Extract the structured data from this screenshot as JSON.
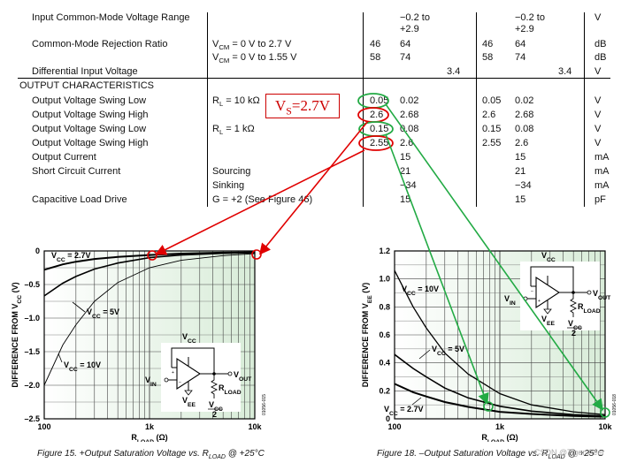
{
  "table": {
    "rows": [
      {
        "param": "Input Common-Mode Voltage Range",
        "cond": "",
        "min1": "",
        "typ1": "−0.2 to\n+2.9",
        "max1": "",
        "min2": "",
        "typ2": "−0.2 to\n+2.9",
        "max2": "",
        "unit": "V",
        "indent": true
      },
      {
        "param": "Common-Mode Rejection Ratio",
        "cond": "V_CM = 0 V to 2.7 V",
        "min1": "46",
        "typ1": "64",
        "max1": "",
        "min2": "46",
        "typ2": "64",
        "max2": "",
        "unit": "dB",
        "indent": true
      },
      {
        "param": "",
        "cond": "V_CM = 0 V to 1.55 V",
        "min1": "58",
        "typ1": "74",
        "max1": "",
        "min2": "58",
        "typ2": "74",
        "max2": "",
        "unit": "dB",
        "indent": true
      },
      {
        "param": "Differential Input Voltage",
        "cond": "",
        "min1": "",
        "typ1": "",
        "max1": "3.4",
        "min2": "",
        "typ2": "",
        "max2": "3.4",
        "unit": "V",
        "indent": true
      },
      {
        "param": "OUTPUT CHARACTERISTICS",
        "cond": "",
        "min1": "",
        "typ1": "",
        "max1": "",
        "min2": "",
        "typ2": "",
        "max2": "",
        "unit": "",
        "indent": false
      },
      {
        "param": "Output Voltage Swing Low",
        "cond": "R_L = 10 kΩ",
        "min1": "0.05",
        "typ1": "0.02",
        "max1": "",
        "min2": "0.05",
        "typ2": "0.02",
        "max2": "",
        "unit": "V",
        "indent": true
      },
      {
        "param": "Output Voltage Swing High",
        "cond": "",
        "min1": "2.6",
        "typ1": "2.68",
        "max1": "",
        "min2": "2.6",
        "typ2": "2.68",
        "max2": "",
        "unit": "V",
        "indent": true
      },
      {
        "param": "Output Voltage Swing Low",
        "cond": "R_L = 1 kΩ",
        "min1": "0.15",
        "typ1": "0.08",
        "max1": "",
        "min2": "0.15",
        "typ2": "0.08",
        "max2": "",
        "unit": "V",
        "indent": true
      },
      {
        "param": "Output Voltage Swing High",
        "cond": "",
        "min1": "2.55",
        "typ1": "2.6",
        "max1": "",
        "min2": "2.55",
        "typ2": "2.6",
        "max2": "",
        "unit": "V",
        "indent": true
      },
      {
        "param": "Output Current",
        "cond": "",
        "min1": "",
        "typ1": "15",
        "max1": "",
        "min2": "",
        "typ2": "15",
        "max2": "",
        "unit": "mA",
        "indent": true
      },
      {
        "param": "Short Circuit Current",
        "cond": "Sourcing",
        "min1": "",
        "typ1": "21",
        "max1": "",
        "min2": "",
        "typ2": "21",
        "max2": "",
        "unit": "mA",
        "indent": true
      },
      {
        "param": "",
        "cond": "Sinking",
        "min1": "",
        "typ1": "−34",
        "max1": "",
        "min2": "",
        "typ2": "−34",
        "max2": "",
        "unit": "mA",
        "indent": true
      },
      {
        "param": "Capacitive Load Drive",
        "cond": "G = +2 (See Figure 46)",
        "min1": "",
        "typ1": "15",
        "max1": "",
        "min2": "",
        "typ2": "15",
        "max2": "",
        "unit": "pF",
        "indent": true
      }
    ]
  },
  "vs_label": "V_S=2.7V",
  "left_chart": {
    "title": "",
    "ylabel": "DIFFERENCE FROM V_CC (V)",
    "xlabel": "R_LOAD (Ω)",
    "xticks": [
      "100",
      "1k",
      "10k"
    ],
    "yticks": [
      "0",
      "–0.5",
      "–1.0",
      "–1.5",
      "–2.0",
      "–2.5"
    ],
    "labels": {
      "vcc27": "V_CC = 2.7V",
      "vcc5": "V_CC = 5V",
      "vcc10": "V_CC = 10V"
    },
    "circuit": {
      "vcc": "V_CC",
      "vin": "V_IN",
      "vee": "V_EE",
      "vout": "V_OUT",
      "rload": "R_LOAD",
      "vcc2": "V_CC",
      "two": "2"
    },
    "code": "01056-015",
    "caption": "Figure 15. +Output Saturation Voltage vs. R_LOAD @ +25°C"
  },
  "right_chart": {
    "title": "",
    "ylabel": "DIFFERENCE FROM V_EE (V)",
    "xlabel": "R_LOAD (Ω)",
    "xticks": [
      "100",
      "1k",
      "10k"
    ],
    "yticks": [
      "1.2",
      "1.0",
      "0.8",
      "0.6",
      "0.4",
      "0.2",
      "0"
    ],
    "labels": {
      "vcc10": "V_CC = 10V",
      "vcc5": "V_CC = 5V",
      "vcc27": "V_CC = 2.7V"
    },
    "circuit": {
      "vcc": "V_CC",
      "vin": "V_IN",
      "vee": "V_EE",
      "vout": "V_OUT",
      "rload": "R_LOAD",
      "vcc2": "V_CC",
      "two": "2"
    },
    "code": "01056-018",
    "caption": "Figure 18. –Output Saturation Voltage vs. R_LOAD @ +25°C"
  },
  "watermark": "CSDN @Tiger-Aeer",
  "chart_data": [
    {
      "type": "line",
      "title": "",
      "xlabel": "R_LOAD (Ω)",
      "ylabel": "DIFFERENCE FROM V_CC (V)",
      "xscale": "log",
      "xlim": [
        100,
        10000
      ],
      "ylim": [
        -2.5,
        0
      ],
      "grid": true,
      "series": [
        {
          "name": "V_CC = 2.7V",
          "x": [
            100,
            150,
            200,
            300,
            500,
            1000,
            2000,
            5000,
            10000
          ],
          "y": [
            -0.28,
            -0.2,
            -0.16,
            -0.12,
            -0.09,
            -0.06,
            -0.04,
            -0.025,
            -0.02
          ]
        },
        {
          "name": "V_CC = 5V",
          "x": [
            100,
            150,
            200,
            300,
            500,
            1000,
            2000,
            5000,
            10000
          ],
          "y": [
            -0.67,
            -0.48,
            -0.38,
            -0.27,
            -0.18,
            -0.1,
            -0.06,
            -0.035,
            -0.025
          ]
        },
        {
          "name": "V_CC = 10V",
          "x": [
            100,
            150,
            200,
            300,
            500,
            1000,
            2000,
            5000,
            10000
          ],
          "y": [
            -2.0,
            -1.4,
            -1.1,
            -0.75,
            -0.47,
            -0.25,
            -0.14,
            -0.07,
            -0.04
          ]
        }
      ]
    },
    {
      "type": "line",
      "title": "",
      "xlabel": "R_LOAD (Ω)",
      "ylabel": "DIFFERENCE FROM V_EE (V)",
      "xscale": "log",
      "xlim": [
        100,
        10000
      ],
      "ylim": [
        0,
        1.2
      ],
      "grid": true,
      "series": [
        {
          "name": "V_CC = 10V",
          "x": [
            100,
            150,
            200,
            300,
            500,
            1000,
            2000,
            5000,
            10000
          ],
          "y": [
            1.06,
            0.8,
            0.65,
            0.47,
            0.32,
            0.18,
            0.1,
            0.05,
            0.03
          ]
        },
        {
          "name": "V_CC = 5V",
          "x": [
            100,
            150,
            200,
            300,
            500,
            1000,
            2000,
            5000,
            10000
          ],
          "y": [
            0.46,
            0.36,
            0.3,
            0.22,
            0.15,
            0.09,
            0.055,
            0.03,
            0.02
          ]
        },
        {
          "name": "V_CC = 2.7V",
          "x": [
            100,
            150,
            200,
            300,
            500,
            1000,
            2000,
            5000,
            10000
          ],
          "y": [
            0.25,
            0.19,
            0.16,
            0.12,
            0.085,
            0.05,
            0.035,
            0.02,
            0.015
          ]
        }
      ]
    }
  ]
}
